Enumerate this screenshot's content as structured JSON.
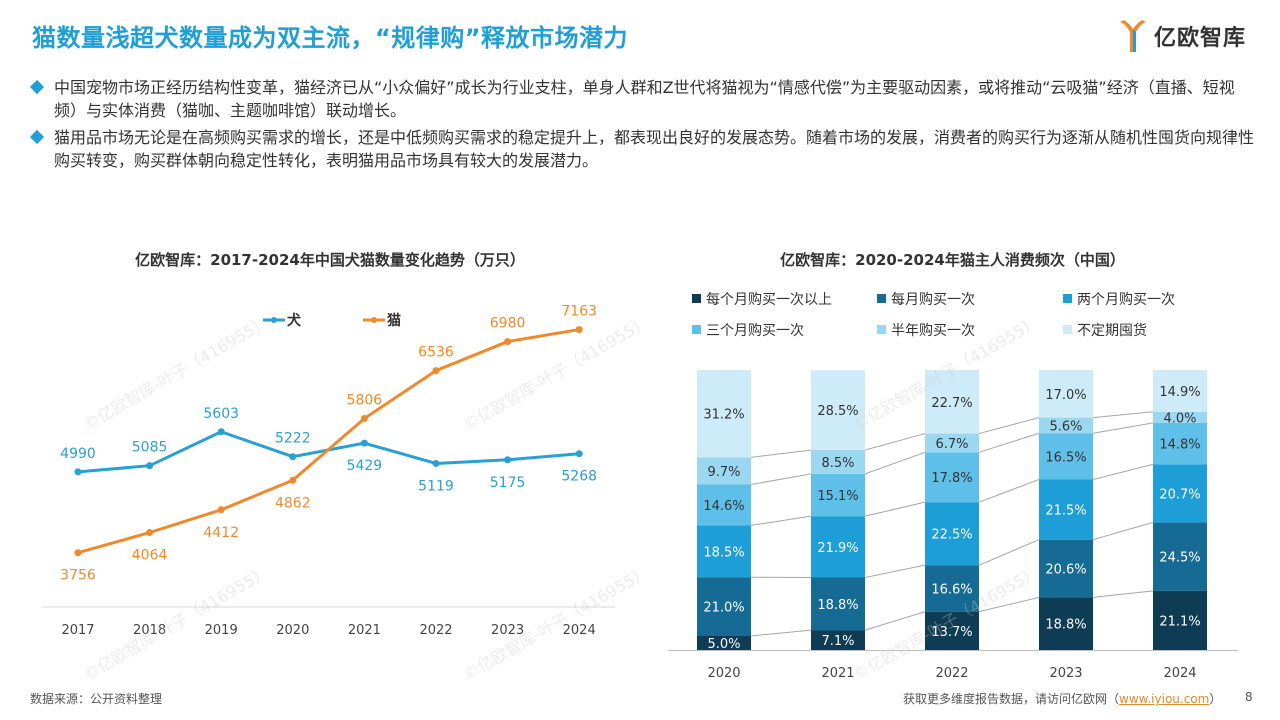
{
  "title": "猫数量浅超犬数量成为双主流，“规律购”释放市场潜力",
  "logo": {
    "text": "亿欧智库"
  },
  "bullets": [
    "中国宠物市场正经历结构性变革，猫经济已从“小众偏好”成长为行业支柱，单身人群和Z世代将猫视为“情感代偿”为主要驱动因素，或将推动“云吸猫”经济（直播、短视频）与实体消费（猫咖、主题咖啡馆）联动增长。",
    "猫用品市场无论是在高频购买需求的增长，还是中低频购买需求的稳定提升上，都表现出良好的发展态势。随着市场的发展，消费者的购买行为逐渐从随机性囤货向规律性购买转变，购买群体朝向稳定性转化，表明猫用品市场具有较大的发展潜力。"
  ],
  "watermark": "©亿欧智库-叶子（416955）",
  "footer": {
    "source": "数据来源：公开资料整理",
    "more_prefix": "获取更多维度报告数据，请访问亿欧网（",
    "link": "www.iyiou.com",
    "more_suffix": "）",
    "page": "8"
  },
  "chart_data": [
    {
      "type": "line",
      "title": "亿欧智库：2017-2024年中国犬猫数量变化趋势（万只）",
      "x": [
        "2017",
        "2018",
        "2019",
        "2020",
        "2021",
        "2022",
        "2023",
        "2024"
      ],
      "series": [
        {
          "name": "犬",
          "color": "#2a9fd1",
          "values": [
            4990,
            5085,
            5603,
            5222,
            5429,
            5119,
            5175,
            5268
          ]
        },
        {
          "name": "猫",
          "color": "#f0892b",
          "values": [
            3756,
            4064,
            4412,
            4862,
            5806,
            6536,
            6980,
            7163
          ]
        }
      ],
      "legend": "top-left",
      "grid": false
    },
    {
      "type": "bar",
      "stacked": true,
      "percent": true,
      "title": "亿欧智库：2020-2024年猫主人消费频次（中国）",
      "categories": [
        "2020",
        "2021",
        "2022",
        "2023",
        "2024"
      ],
      "series": [
        {
          "name": "每个月购买一次以上",
          "color": "#0e3c55",
          "values": [
            5.0,
            7.1,
            13.7,
            18.8,
            21.1
          ]
        },
        {
          "name": "每月购买一次",
          "color": "#166b94",
          "values": [
            21.0,
            18.8,
            16.6,
            20.6,
            24.5
          ]
        },
        {
          "name": "两个月购买一次",
          "color": "#1e9ed6",
          "values": [
            18.5,
            21.9,
            22.5,
            21.5,
            20.7
          ]
        },
        {
          "name": "三个月购买一次",
          "color": "#5ec0e8",
          "values": [
            14.6,
            15.1,
            17.8,
            16.5,
            14.8
          ]
        },
        {
          "name": "半年购买一次",
          "color": "#9ad7f1",
          "values": [
            9.7,
            8.5,
            6.7,
            5.6,
            4.0
          ]
        },
        {
          "name": "不定期囤货",
          "color": "#cdebf8",
          "values": [
            31.2,
            28.5,
            22.7,
            17.0,
            14.9
          ]
        }
      ],
      "legend": "top",
      "grid": false
    }
  ]
}
